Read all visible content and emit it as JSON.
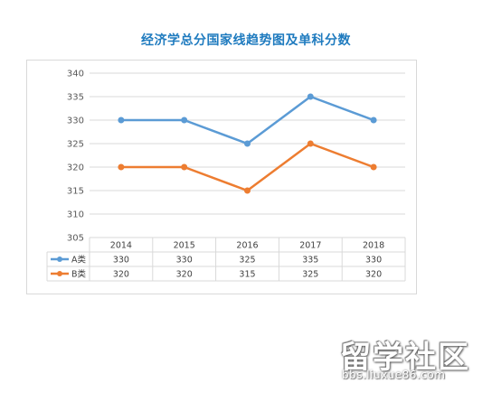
{
  "title": "经济学总分国家线趋势图及单科分数",
  "colors": {
    "title": "#1f7bbf",
    "series_a": "#5b9bd5",
    "series_b": "#ed7d31",
    "grid": "#d9d9d9"
  },
  "chart_data": {
    "type": "line",
    "title": "经济学总分国家线趋势图及单科分数",
    "categories": [
      "2014",
      "2015",
      "2016",
      "2017",
      "2018"
    ],
    "series": [
      {
        "name": "A类",
        "values": [
          330,
          330,
          325,
          335,
          330
        ]
      },
      {
        "name": "B类",
        "values": [
          320,
          320,
          315,
          325,
          320
        ]
      }
    ],
    "y_ticks": [
      "340",
      "335",
      "330",
      "325",
      "320",
      "315",
      "310",
      "305"
    ],
    "ylim": [
      305,
      340
    ],
    "grid": true,
    "legend": "data table below chart",
    "data_table": true
  },
  "watermark": {
    "main": "留学社区",
    "sub": "bbs.liuxue86.com"
  }
}
